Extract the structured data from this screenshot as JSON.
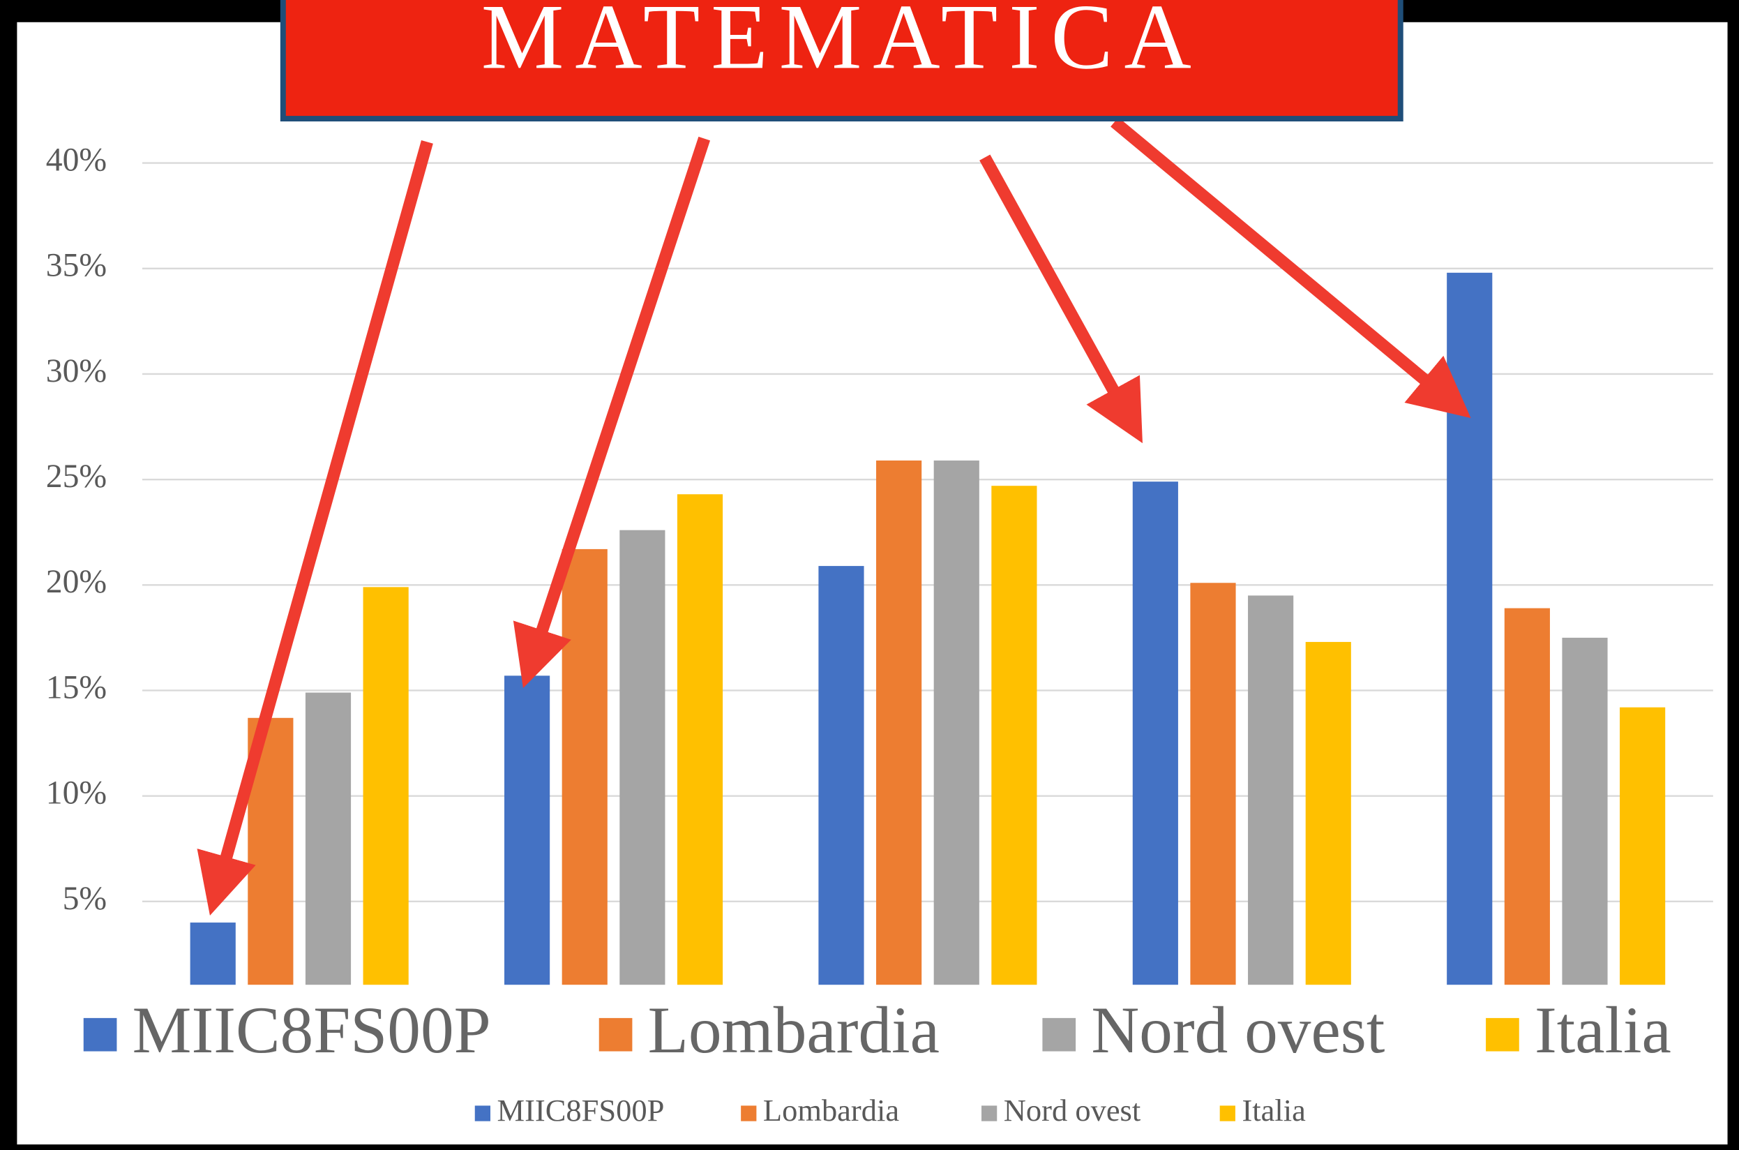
{
  "chart_data": {
    "type": "bar",
    "title": "MATEMATICA",
    "categories": [
      null,
      null,
      null,
      null,
      null
    ],
    "series": [
      {
        "name": "MIIC8FS00P",
        "color": "#4472c4",
        "values": [
          4,
          15.7,
          20.9,
          24.9,
          34.8
        ]
      },
      {
        "name": "Lombardia",
        "color": "#ed7d31",
        "values": [
          13.7,
          21.7,
          25.9,
          20.1,
          18.9
        ]
      },
      {
        "name": "Nord ovest",
        "color": "#a5a5a5",
        "values": [
          14.9,
          22.6,
          25.9,
          19.5,
          17.5
        ]
      },
      {
        "name": "Italia",
        "color": "#ffc000",
        "values": [
          19.9,
          24.3,
          24.7,
          17.3,
          14.2
        ]
      }
    ],
    "ylim": [
      0,
      40
    ],
    "yticks": [
      {
        "value": 5,
        "label": "5%"
      },
      {
        "value": 10,
        "label": "10%"
      },
      {
        "value": 15,
        "label": "15%"
      },
      {
        "value": 20,
        "label": "20%"
      },
      {
        "value": 25,
        "label": "25%"
      },
      {
        "value": 30,
        "label": "30%"
      },
      {
        "value": 35,
        "label": "35%"
      },
      {
        "value": 40,
        "label": "40%"
      }
    ],
    "grid": true
  }
}
